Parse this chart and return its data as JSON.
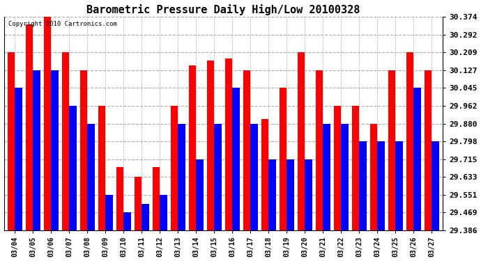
{
  "title": "Barometric Pressure Daily High/Low 20100328",
  "copyright": "Copyright 2010 Cartronics.com",
  "dates": [
    "03/04",
    "03/05",
    "03/06",
    "03/07",
    "03/08",
    "03/09",
    "03/10",
    "03/11",
    "03/12",
    "03/13",
    "03/14",
    "03/15",
    "03/16",
    "03/17",
    "03/18",
    "03/19",
    "03/20",
    "03/21",
    "03/22",
    "03/23",
    "03/24",
    "03/25",
    "03/26",
    "03/27"
  ],
  "highs": [
    30.209,
    30.34,
    30.374,
    30.209,
    30.127,
    29.962,
    29.68,
    29.633,
    29.68,
    29.962,
    30.15,
    30.17,
    30.18,
    30.127,
    29.9,
    30.045,
    30.209,
    30.127,
    29.962,
    29.962,
    29.88,
    30.127,
    30.209,
    30.127
  ],
  "lows": [
    30.045,
    30.127,
    30.127,
    29.962,
    29.88,
    29.551,
    29.469,
    29.51,
    29.551,
    29.88,
    29.715,
    29.88,
    30.045,
    29.88,
    29.715,
    29.715,
    29.715,
    29.88,
    29.88,
    29.798,
    29.798,
    29.798,
    30.045,
    29.798
  ],
  "high_color": "#ff0000",
  "low_color": "#0000ff",
  "bg_color": "#ffffff",
  "grid_color": "#aaaaaa",
  "title_fontsize": 11,
  "ylabel_fontsize": 8,
  "xlabel_fontsize": 7,
  "ymin": 29.386,
  "ymax": 30.374,
  "yticks": [
    29.386,
    29.469,
    29.551,
    29.633,
    29.715,
    29.798,
    29.88,
    29.962,
    30.045,
    30.127,
    30.209,
    30.292,
    30.374
  ]
}
